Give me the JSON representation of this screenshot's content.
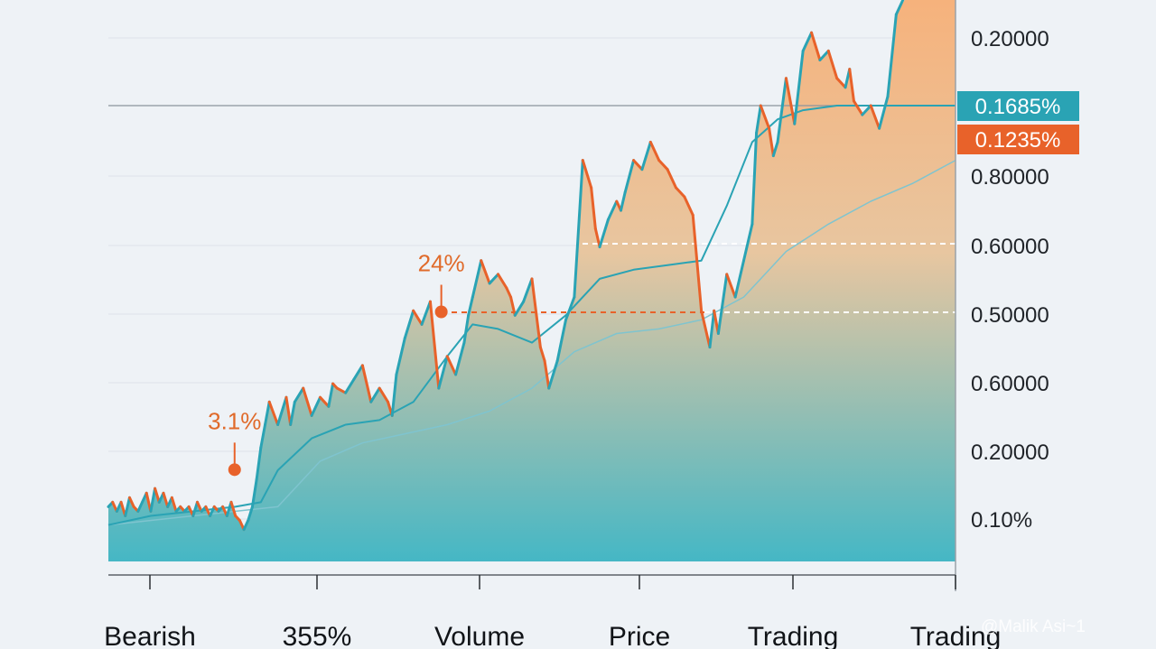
{
  "chart_data": {
    "type": "area",
    "y_tick_labels": [
      "0.20000",
      "0.80000",
      "0.60000",
      "0.50000",
      "0.60000",
      "0.20000",
      "0.10%"
    ],
    "x_tick_labels": [
      "Bearish",
      "355%",
      "Volume",
      "Price",
      "Trading",
      "Trading"
    ],
    "badges": [
      {
        "text": "0.1685%",
        "color": "#2aa3b4"
      },
      {
        "text": "0.1235%",
        "color": "#e8622a"
      }
    ],
    "annotations": [
      {
        "text": "3.1%",
        "x": 0.149,
        "y": 0.128
      },
      {
        "text": "24%",
        "x": 0.393,
        "y": 0.5
      }
    ],
    "series": [
      {
        "type": "price-line",
        "up_color": "#2aa3b4",
        "down_color": "#e8622a",
        "x": [
          0,
          0.005,
          0.01,
          0.015,
          0.02,
          0.025,
          0.03,
          0.035,
          0.04,
          0.045,
          0.05,
          0.055,
          0.06,
          0.065,
          0.07,
          0.075,
          0.08,
          0.085,
          0.09,
          0.095,
          0.1,
          0.105,
          0.11,
          0.115,
          0.12,
          0.125,
          0.13,
          0.135,
          0.14,
          0.145,
          0.15,
          0.155,
          0.16,
          0.165,
          0.17,
          0.175,
          0.18,
          0.185,
          0.19,
          0.2,
          0.21,
          0.215,
          0.22,
          0.23,
          0.24,
          0.25,
          0.26,
          0.265,
          0.27,
          0.28,
          0.29,
          0.3,
          0.31,
          0.32,
          0.33,
          0.335,
          0.34,
          0.35,
          0.36,
          0.37,
          0.38,
          0.39,
          0.4,
          0.41,
          0.42,
          0.425,
          0.43,
          0.44,
          0.45,
          0.46,
          0.47,
          0.475,
          0.48,
          0.49,
          0.5,
          0.51,
          0.515,
          0.52,
          0.53,
          0.54,
          0.55,
          0.56,
          0.57,
          0.575,
          0.58,
          0.59,
          0.6,
          0.605,
          0.61,
          0.62,
          0.63,
          0.64,
          0.65,
          0.66,
          0.67,
          0.68,
          0.69,
          0.7,
          0.71,
          0.715,
          0.72,
          0.73,
          0.74,
          0.75,
          0.76,
          0.765,
          0.77,
          0.78,
          0.785,
          0.79,
          0.8,
          0.81,
          0.82,
          0.83,
          0.84,
          0.85,
          0.86,
          0.87,
          0.875,
          0.88,
          0.89,
          0.9,
          0.91,
          0.92,
          0.93,
          0.94,
          0.95,
          0.96,
          0.97,
          0.98,
          0.99,
          1.0
        ],
        "y": [
          0.12,
          0.13,
          0.11,
          0.13,
          0.1,
          0.14,
          0.12,
          0.11,
          0.13,
          0.15,
          0.11,
          0.16,
          0.13,
          0.15,
          0.12,
          0.14,
          0.11,
          0.12,
          0.11,
          0.12,
          0.1,
          0.13,
          0.11,
          0.12,
          0.1,
          0.12,
          0.11,
          0.12,
          0.1,
          0.13,
          0.1,
          0.09,
          0.07,
          0.09,
          0.12,
          0.18,
          0.25,
          0.3,
          0.35,
          0.3,
          0.36,
          0.3,
          0.35,
          0.38,
          0.32,
          0.36,
          0.34,
          0.39,
          0.38,
          0.37,
          0.4,
          0.43,
          0.35,
          0.38,
          0.35,
          0.32,
          0.41,
          0.49,
          0.55,
          0.52,
          0.57,
          0.38,
          0.45,
          0.41,
          0.48,
          0.54,
          0.58,
          0.66,
          0.61,
          0.63,
          0.6,
          0.58,
          0.54,
          0.57,
          0.62,
          0.47,
          0.44,
          0.38,
          0.44,
          0.53,
          0.58,
          0.88,
          0.82,
          0.73,
          0.69,
          0.75,
          0.79,
          0.77,
          0.81,
          0.88,
          0.86,
          0.92,
          0.88,
          0.86,
          0.82,
          0.8,
          0.76,
          0.55,
          0.47,
          0.55,
          0.5,
          0.63,
          0.58,
          0.66,
          0.74,
          0.94,
          1.0,
          0.95,
          0.89,
          0.92,
          1.06,
          0.96,
          1.12,
          1.16,
          1.1,
          1.12,
          1.06,
          1.04,
          1.08,
          1.01,
          0.98,
          1.0,
          0.95,
          1.02,
          1.2,
          1.24,
          1.36,
          1.28,
          1.38,
          1.32,
          1.44,
          1.48
        ]
      },
      {
        "type": "moving-average",
        "color": "#2aa3b4",
        "x": [
          0,
          0.05,
          0.1,
          0.15,
          0.18,
          0.2,
          0.24,
          0.28,
          0.32,
          0.36,
          0.4,
          0.43,
          0.46,
          0.5,
          0.54,
          0.58,
          0.62,
          0.66,
          0.7,
          0.73,
          0.76,
          0.79,
          0.82,
          0.86,
          0.9,
          0.94,
          1.0
        ],
        "y": [
          0.08,
          0.1,
          0.11,
          0.12,
          0.13,
          0.2,
          0.27,
          0.3,
          0.31,
          0.35,
          0.45,
          0.52,
          0.51,
          0.48,
          0.54,
          0.62,
          0.64,
          0.65,
          0.66,
          0.78,
          0.92,
          0.97,
          0.99,
          1.0,
          1.0,
          1.0,
          1.0
        ]
      },
      {
        "type": "slow-average",
        "color": "#7fc4cf",
        "x": [
          0,
          0.1,
          0.2,
          0.25,
          0.3,
          0.35,
          0.4,
          0.45,
          0.5,
          0.55,
          0.6,
          0.65,
          0.7,
          0.75,
          0.8,
          0.85,
          0.9,
          0.95,
          1.0
        ],
        "y": [
          0.08,
          0.1,
          0.12,
          0.22,
          0.26,
          0.28,
          0.3,
          0.33,
          0.38,
          0.46,
          0.5,
          0.51,
          0.53,
          0.58,
          0.68,
          0.74,
          0.79,
          0.83,
          0.88
        ]
      }
    ],
    "reference_lines": [
      {
        "style": "solid",
        "y": 1.0
      },
      {
        "style": "dashed-white",
        "y": 0.65
      },
      {
        "style": "dashed-white",
        "y": 0.5
      },
      {
        "style": "dashed-orange",
        "y": 0.5
      }
    ],
    "gradient": {
      "top": "#f6b27c",
      "bottom": "#45b7c5"
    },
    "grid": true
  },
  "watermark": "@Malik Asi~1"
}
